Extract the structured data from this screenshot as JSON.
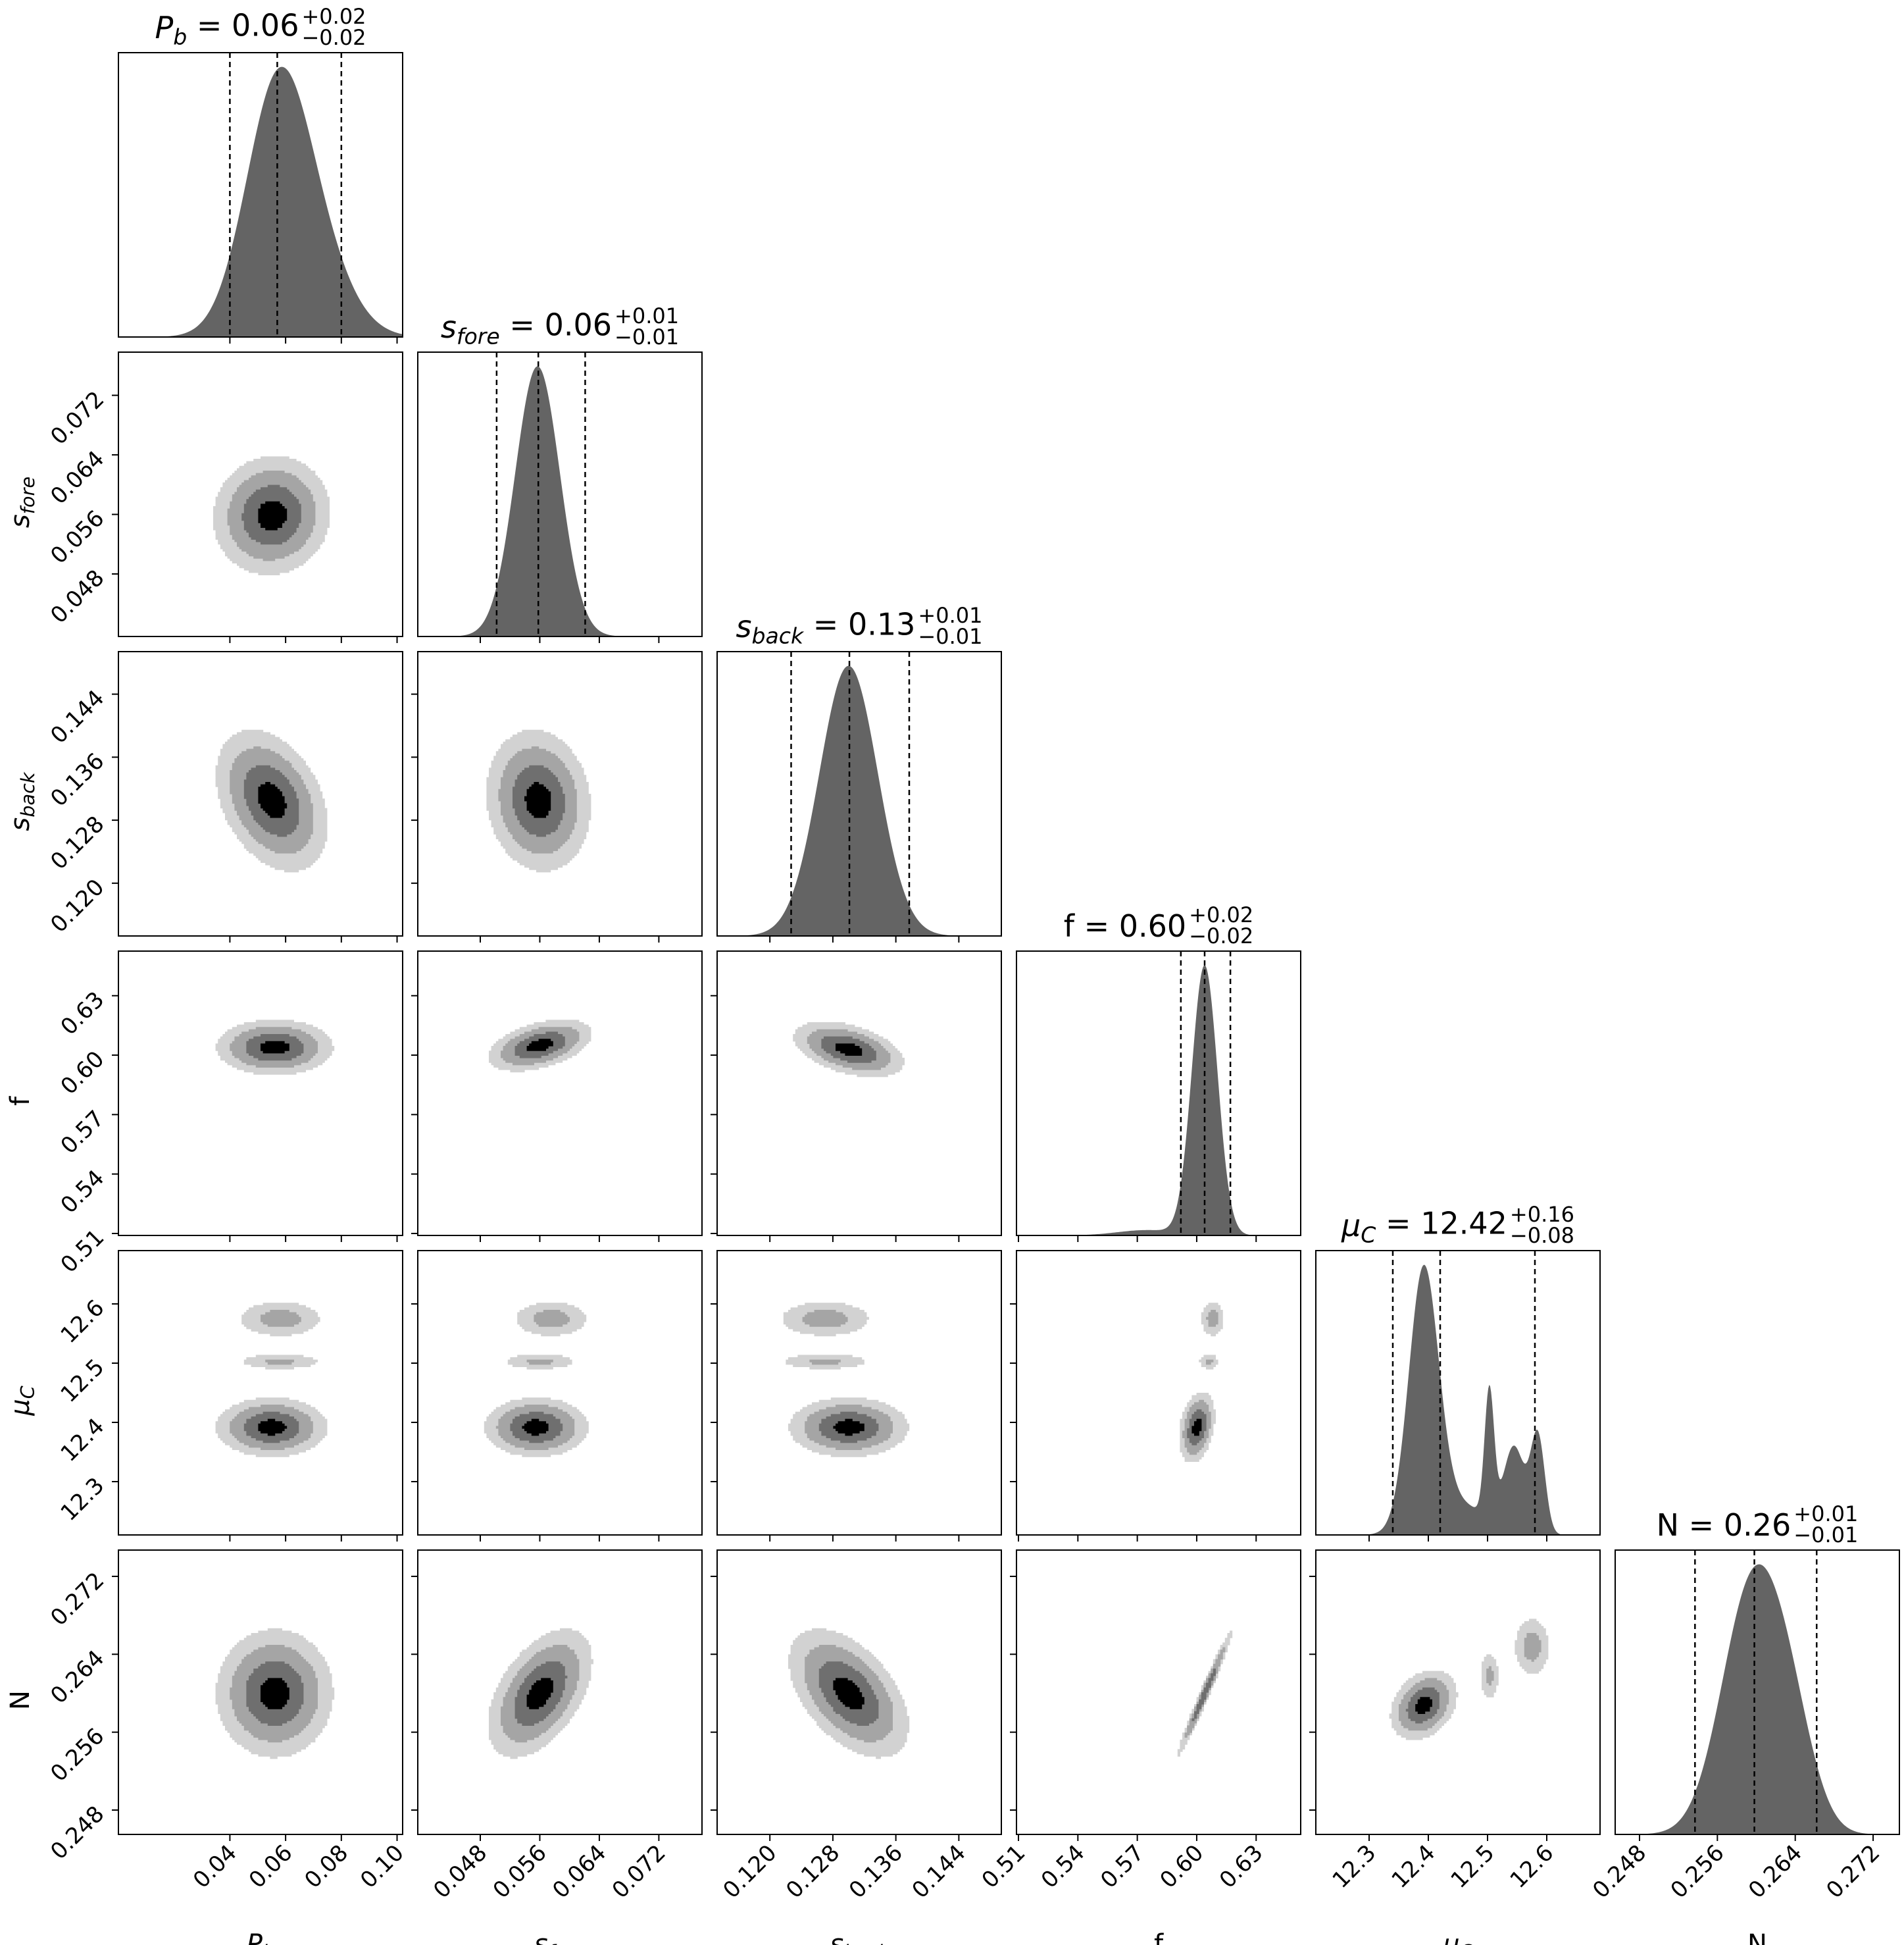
{
  "chart_data": {
    "type": "corner",
    "description_free": true,
    "parameters": [
      {
        "key": "Pb",
        "axis_label_main": "P",
        "axis_label_sub": "b",
        "range": [
          0.0,
          0.102
        ],
        "ticks": [
          "0.04",
          "0.06",
          "0.08",
          "0.10"
        ],
        "tick_values": [
          0.04,
          0.06,
          0.08,
          0.1
        ],
        "y_ticks": [],
        "y_tick_values": []
      },
      {
        "key": "sfore",
        "axis_label_main": "s",
        "axis_label_sub": "fore",
        "range": [
          0.0396,
          0.0778
        ],
        "ticks": [
          "0.048",
          "0.056",
          "0.064",
          "0.072"
        ],
        "tick_values": [
          0.048,
          0.056,
          0.064,
          0.072
        ]
      },
      {
        "key": "sback",
        "axis_label_main": "s",
        "axis_label_sub": "back",
        "range": [
          0.1133,
          0.1494
        ],
        "ticks": [
          "0.120",
          "0.128",
          "0.136",
          "0.144"
        ],
        "tick_values": [
          0.12,
          0.128,
          0.136,
          0.144
        ]
      },
      {
        "key": "f",
        "axis_label_main": "f",
        "axis_label_sub": "",
        "range": [
          0.509,
          0.6525
        ],
        "ticks": [
          "0.51",
          "0.54",
          "0.57",
          "0.60",
          "0.63"
        ],
        "tick_values": [
          0.51,
          0.54,
          0.57,
          0.6,
          0.63
        ]
      },
      {
        "key": "muC",
        "axis_label_main": "μ",
        "axis_label_sub": "C",
        "range": [
          12.21,
          12.69
        ],
        "ticks": [
          "12.3",
          "12.4",
          "12.5",
          "12.6"
        ],
        "tick_values": [
          12.3,
          12.4,
          12.5,
          12.6
        ]
      },
      {
        "key": "N",
        "axis_label_main": "N",
        "axis_label_sub": "",
        "range": [
          0.2455,
          0.2747
        ],
        "ticks": [
          "0.248",
          "0.256",
          "0.264",
          "0.272"
        ],
        "tick_values": [
          0.248,
          0.256,
          0.264,
          0.272
        ]
      }
    ],
    "summaries": [
      {
        "label_main": "P",
        "label_sub": "b",
        "median_text": "0.06",
        "plus": "+0.02",
        "minus": "−0.02",
        "q16": 0.04,
        "q50": 0.057,
        "q84": 0.08
      },
      {
        "label_main": "s",
        "label_sub": "fore",
        "median_text": "0.06",
        "plus": "+0.01",
        "minus": "−0.01",
        "q16": 0.0502,
        "q50": 0.0558,
        "q84": 0.0621
      },
      {
        "label_main": "s",
        "label_sub": "back",
        "median_text": "0.13",
        "plus": "+0.01",
        "minus": "−0.01",
        "q16": 0.1227,
        "q50": 0.1301,
        "q84": 0.1377
      },
      {
        "label_main": "f",
        "label_sub": "",
        "median_text": "0.60",
        "plus": "+0.02",
        "minus": "−0.02",
        "q16": 0.592,
        "q50": 0.604,
        "q84": 0.617
      },
      {
        "label_main": "μ",
        "label_sub": "C",
        "median_text": "12.42",
        "plus": "+0.16",
        "minus": "−0.08",
        "q16": 12.34,
        "q50": 12.42,
        "q84": 12.58
      },
      {
        "label_main": "N",
        "label_sub": "",
        "median_text": "0.26",
        "plus": "+0.01",
        "minus": "−0.01",
        "q16": 0.2537,
        "q50": 0.2598,
        "q84": 0.2662
      }
    ],
    "marginals": [
      {
        "components": [
          {
            "w": 1,
            "mu": 0.057,
            "sigma": 0.0115
          },
          {
            "w": 0.25,
            "mu": 0.072,
            "sigma": 0.012
          }
        ]
      },
      {
        "components": [
          {
            "w": 1,
            "mu": 0.0557,
            "sigma": 0.003
          }
        ]
      },
      {
        "components": [
          {
            "w": 1,
            "mu": 0.13,
            "sigma": 0.0037
          }
        ]
      },
      {
        "components": [
          {
            "w": 1,
            "mu": 0.604,
            "sigma": 0.0065
          },
          {
            "w": 0.02,
            "mu": 0.575,
            "sigma": 0.015
          }
        ]
      },
      {
        "components": [
          {
            "w": 1,
            "mu": 12.392,
            "sigma": 0.025
          },
          {
            "w": 0.5,
            "mu": 12.503,
            "sigma": 0.008
          },
          {
            "w": 0.33,
            "mu": 12.545,
            "sigma": 0.018
          },
          {
            "w": 0.38,
            "mu": 12.585,
            "sigma": 0.012
          },
          {
            "w": 0.12,
            "mu": 12.45,
            "sigma": 0.05
          }
        ]
      },
      {
        "components": [
          {
            "w": 1,
            "mu": 0.2595,
            "sigma": 0.0031
          },
          {
            "w": 0.35,
            "mu": 0.2635,
            "sigma": 0.0025
          }
        ]
      }
    ],
    "contour_levels_sigma": [
      0.5,
      1.0,
      1.5,
      2.0
    ],
    "contour_fills": [
      "#000000",
      "#6f6f6f",
      "#a5a5a5",
      "#d2d2d2"
    ],
    "pairs": [
      {
        "row": 1,
        "col": 0,
        "blobs": [
          {
            "cx": 0.055,
            "cy": 0.0559,
            "sx": 0.0105,
            "sy": 0.004,
            "rho": 0.05
          }
        ]
      },
      {
        "row": 2,
        "col": 0,
        "blobs": [
          {
            "cx": 0.055,
            "cy": 0.1305,
            "sx": 0.01,
            "sy": 0.0045,
            "rho": -0.35
          }
        ]
      },
      {
        "row": 2,
        "col": 1,
        "blobs": [
          {
            "cx": 0.0558,
            "cy": 0.1305,
            "sx": 0.0035,
            "sy": 0.0045,
            "rho": -0.1
          }
        ]
      },
      {
        "row": 3,
        "col": 0,
        "blobs": [
          {
            "cx": 0.056,
            "cy": 0.604,
            "sx": 0.0105,
            "sy": 0.007,
            "rho": 0.0
          }
        ]
      },
      {
        "row": 3,
        "col": 1,
        "blobs": [
          {
            "cx": 0.056,
            "cy": 0.605,
            "sx": 0.0035,
            "sy": 0.0065,
            "rho": 0.45
          }
        ]
      },
      {
        "row": 3,
        "col": 2,
        "blobs": [
          {
            "cx": 0.13,
            "cy": 0.603,
            "sx": 0.0035,
            "sy": 0.007,
            "rho": -0.45
          }
        ]
      },
      {
        "row": 4,
        "col": 0,
        "blobs": [
          {
            "cx": 0.055,
            "cy": 12.392,
            "sx": 0.01,
            "sy": 0.025,
            "rho": 0.0,
            "w": 1
          },
          {
            "cx": 0.058,
            "cy": 12.503,
            "sx": 0.009,
            "sy": 0.008,
            "rho": 0.0,
            "w": 0.4
          },
          {
            "cx": 0.058,
            "cy": 12.575,
            "sx": 0.009,
            "sy": 0.018,
            "rho": 0.0,
            "w": 0.45
          }
        ]
      },
      {
        "row": 4,
        "col": 1,
        "blobs": [
          {
            "cx": 0.0555,
            "cy": 12.392,
            "sx": 0.0035,
            "sy": 0.025,
            "rho": 0.0,
            "w": 1
          },
          {
            "cx": 0.056,
            "cy": 12.503,
            "sx": 0.003,
            "sy": 0.008,
            "rho": 0.0,
            "w": 0.4
          },
          {
            "cx": 0.0575,
            "cy": 12.575,
            "sx": 0.003,
            "sy": 0.018,
            "rho": 0.0,
            "w": 0.45
          }
        ]
      },
      {
        "row": 4,
        "col": 2,
        "blobs": [
          {
            "cx": 0.13,
            "cy": 12.392,
            "sx": 0.0038,
            "sy": 0.025,
            "rho": 0.0,
            "w": 1
          },
          {
            "cx": 0.127,
            "cy": 12.503,
            "sx": 0.0035,
            "sy": 0.008,
            "rho": 0.0,
            "w": 0.4
          },
          {
            "cx": 0.127,
            "cy": 12.575,
            "sx": 0.0035,
            "sy": 0.018,
            "rho": 0.0,
            "w": 0.45
          }
        ]
      },
      {
        "row": 4,
        "col": 3,
        "blobs": [
          {
            "cx": 0.6,
            "cy": 12.392,
            "sx": 0.0045,
            "sy": 0.03,
            "rho": 0.3,
            "w": 1
          },
          {
            "cx": 0.606,
            "cy": 12.503,
            "sx": 0.003,
            "sy": 0.008,
            "rho": 0.0,
            "w": 0.4
          },
          {
            "cx": 0.608,
            "cy": 12.575,
            "sx": 0.0035,
            "sy": 0.018,
            "rho": 0.0,
            "w": 0.45
          }
        ]
      },
      {
        "row": 5,
        "col": 0,
        "blobs": [
          {
            "cx": 0.056,
            "cy": 0.26,
            "sx": 0.0105,
            "sy": 0.0033,
            "rho": 0.0
          }
        ]
      },
      {
        "row": 5,
        "col": 1,
        "blobs": [
          {
            "cx": 0.056,
            "cy": 0.26,
            "sx": 0.0035,
            "sy": 0.0033,
            "rho": 0.5
          }
        ]
      },
      {
        "row": 5,
        "col": 2,
        "blobs": [
          {
            "cx": 0.13,
            "cy": 0.26,
            "sx": 0.0038,
            "sy": 0.0033,
            "rho": -0.5
          }
        ]
      },
      {
        "row": 5,
        "col": 3,
        "blobs": [
          {
            "cx": 0.604,
            "cy": 0.26,
            "sx": 0.007,
            "sy": 0.0033,
            "rho": 0.985
          }
        ]
      },
      {
        "row": 5,
        "col": 4,
        "blobs": [
          {
            "cx": 12.392,
            "cy": 0.2588,
            "sx": 0.028,
            "sy": 0.0018,
            "rho": 0.3,
            "w": 1
          },
          {
            "cx": 12.503,
            "cy": 0.2618,
            "sx": 0.01,
            "sy": 0.0015,
            "rho": 0.0,
            "w": 0.4
          },
          {
            "cx": 12.575,
            "cy": 0.2648,
            "sx": 0.018,
            "sy": 0.0018,
            "rho": 0.0,
            "w": 0.45
          }
        ]
      }
    ]
  }
}
